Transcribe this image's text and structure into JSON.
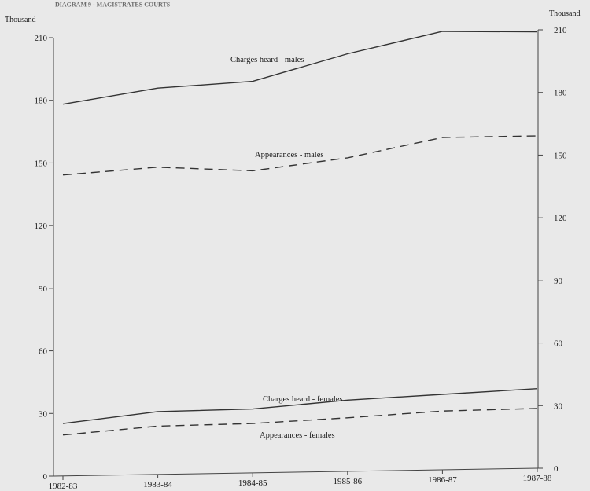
{
  "chart_data": {
    "type": "line",
    "title": "DIAGRAM 9 - MAGISTRATES COURTS",
    "ylabel_left": "Thousand",
    "ylabel_right": "Thousand",
    "categories": [
      "1982-83",
      "1983-84",
      "1984-85",
      "1985-86",
      "1986-87",
      "1987-88"
    ],
    "ylim": [
      0,
      210
    ],
    "yticks": [
      0,
      30,
      60,
      90,
      120,
      150,
      180,
      210
    ],
    "left_ytick_labels": [
      "0",
      "30",
      "60",
      "90",
      "120",
      "150",
      "180",
      "210"
    ],
    "right_ytick_labels": [
      "0",
      "30",
      "60",
      "90",
      "120",
      "150",
      "180",
      "210"
    ],
    "grid": false,
    "legend": "none",
    "series": [
      {
        "name": "Charges heard - males",
        "style": "solid",
        "values": [
          178,
          185,
          187.5,
          200,
          210,
          209
        ]
      },
      {
        "name": "Appearances - males",
        "style": "dashed",
        "values": [
          144,
          147,
          144.5,
          150,
          159,
          159
        ]
      },
      {
        "name": "Charges heard - females",
        "style": "solid",
        "values": [
          24.5,
          29.5,
          30,
          33.5,
          35.5,
          37.5
        ]
      },
      {
        "name": "Appearances - females",
        "style": "dashed",
        "values": [
          19,
          22.5,
          23,
          25,
          27.5,
          28
        ]
      }
    ]
  }
}
